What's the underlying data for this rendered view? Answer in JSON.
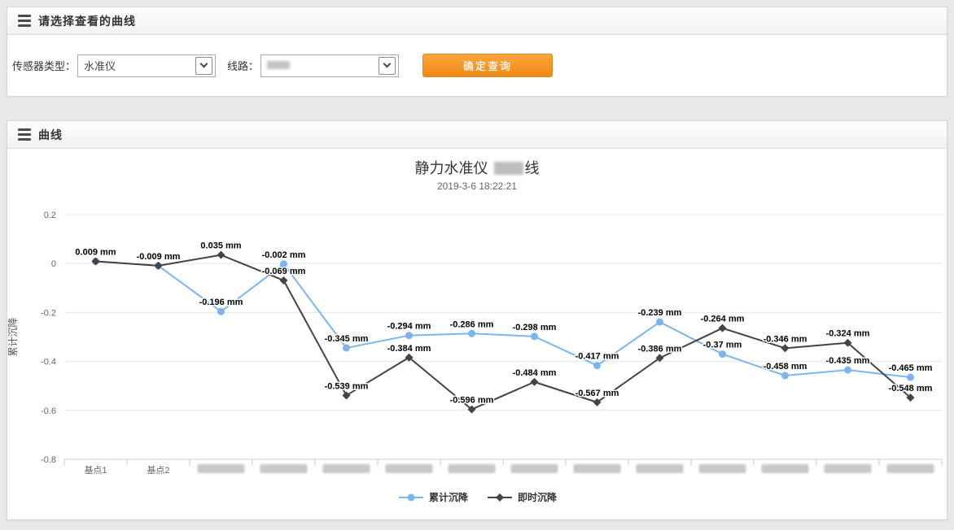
{
  "filter_panel": {
    "title": "请选择查看的曲线",
    "sensor_type_label": "传感器类型：",
    "sensor_type_value": "水准仪",
    "line_label": "线路：",
    "line_value_redacted": true,
    "query_button_label": "确定查询",
    "query_button_color": "#f29426"
  },
  "chart_panel": {
    "title": "曲线"
  },
  "chart_data": {
    "type": "line",
    "title": {
      "prefix": "静力水准仪 ",
      "redacted_middle": true,
      "suffix": "线"
    },
    "subtitle": "2019-3-6 18:22:21",
    "ylabel": "累计沉降",
    "ylim": [
      -0.8,
      0.2
    ],
    "yticks": [
      0.2,
      0,
      -0.2,
      -0.4,
      -0.6,
      -0.8
    ],
    "grid": true,
    "legend_position": "bottom",
    "data_label_suffix": " mm",
    "shared_label_count": 2,
    "categories": [
      {
        "label": "基点1",
        "redacted": false
      },
      {
        "label": "基点2",
        "redacted": false
      },
      {
        "label": "",
        "redacted": true
      },
      {
        "label": "",
        "redacted": true
      },
      {
        "label": "",
        "redacted": true
      },
      {
        "label": "",
        "redacted": true
      },
      {
        "label": "",
        "redacted": true
      },
      {
        "label": "",
        "redacted": true
      },
      {
        "label": "",
        "redacted": true
      },
      {
        "label": "",
        "redacted": true
      },
      {
        "label": "",
        "redacted": true
      },
      {
        "label": "",
        "redacted": true
      },
      {
        "label": "",
        "redacted": true
      },
      {
        "label": "",
        "redacted": true
      }
    ],
    "series": [
      {
        "id": "cumulative-settlement",
        "name": "累计沉降",
        "color": "#7cb5ec",
        "marker": "circle",
        "values": [
          0.009,
          -0.009,
          -0.196,
          -0.002,
          -0.345,
          -0.294,
          -0.286,
          -0.298,
          -0.417,
          -0.239,
          -0.37,
          -0.458,
          -0.435,
          -0.465
        ]
      },
      {
        "id": "instant-settlement",
        "name": "即时沉降",
        "color": "#434348",
        "marker": "diamond",
        "values": [
          0.009,
          -0.009,
          0.035,
          -0.069,
          -0.539,
          -0.384,
          -0.596,
          -0.484,
          -0.567,
          -0.386,
          -0.264,
          -0.346,
          -0.324,
          -0.548
        ]
      }
    ]
  }
}
